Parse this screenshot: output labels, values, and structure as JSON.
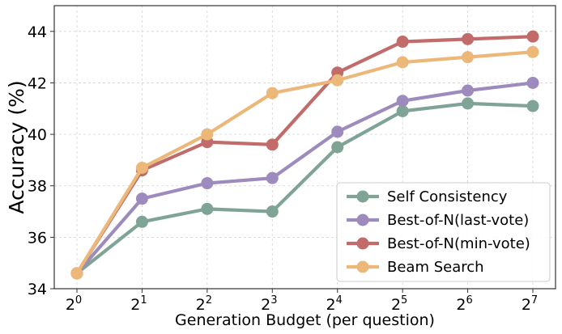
{
  "chart_data": {
    "type": "line",
    "title": "",
    "xlabel": "Generation Budget (per question)",
    "ylabel": "Accuracy (%)",
    "x_base": "2",
    "x_exponents": [
      "0",
      "1",
      "2",
      "3",
      "4",
      "5",
      "6",
      "7"
    ],
    "x": [
      0,
      1,
      2,
      3,
      4,
      5,
      6,
      7
    ],
    "ylim": [
      34,
      45
    ],
    "yticks": [
      34,
      36,
      38,
      40,
      42,
      44
    ],
    "ytick_labels": [
      "34",
      "36",
      "38",
      "40",
      "42",
      "44"
    ],
    "grid": true,
    "legend_position": "bottom-right",
    "series": [
      {
        "name": "Self Consistency",
        "color": "#7fa394",
        "values": [
          34.6,
          36.6,
          37.1,
          37.0,
          39.5,
          40.9,
          41.2,
          41.1
        ]
      },
      {
        "name": "Best-of-N(last-vote)",
        "color": "#9e8bbd",
        "values": [
          34.6,
          37.5,
          38.1,
          38.3,
          40.1,
          41.3,
          41.7,
          42.0
        ]
      },
      {
        "name": "Best-of-N(min-vote)",
        "color": "#c16b6b",
        "values": [
          34.6,
          38.6,
          39.7,
          39.6,
          42.4,
          43.6,
          43.7,
          43.8
        ]
      },
      {
        "name": "Beam Search",
        "color": "#ecb87a",
        "values": [
          34.6,
          38.7,
          40.0,
          41.6,
          42.1,
          42.8,
          43.0,
          43.2
        ]
      }
    ]
  }
}
